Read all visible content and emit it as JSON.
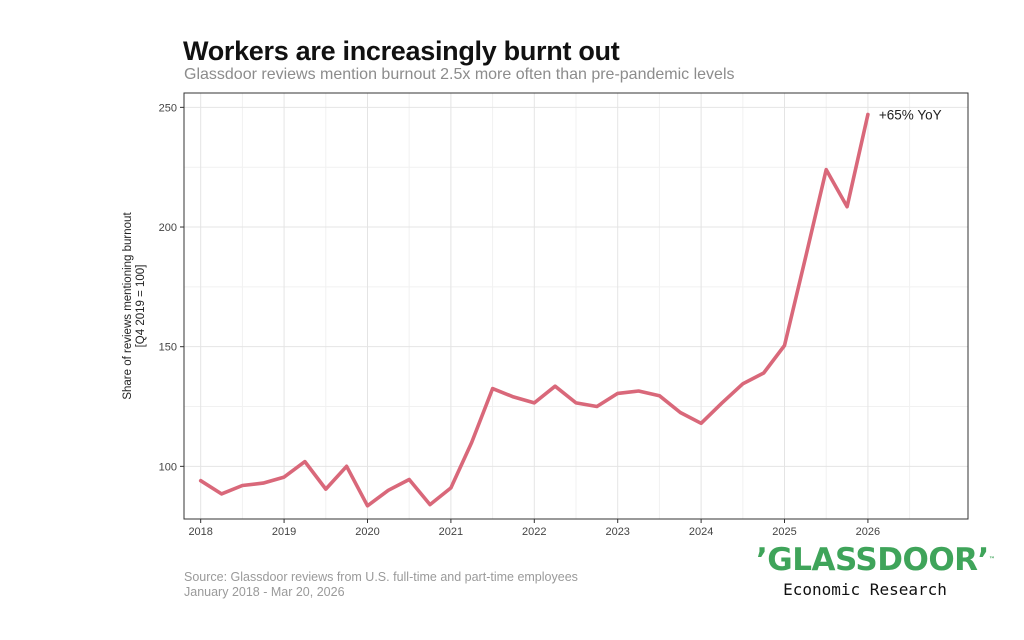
{
  "chart_data": {
    "type": "line",
    "title": "Workers are increasingly burnt out",
    "subtitle": "Glassdoor reviews mention burnout 2.5x more often than pre-pandemic levels",
    "xlabel": "",
    "ylabel": "Share of reviews mentioning burnout\n[Q4 2019 = 100]",
    "xlim": [
      2017.8,
      2027.2
    ],
    "ylim": [
      78,
      256
    ],
    "x_ticks": [
      2018,
      2019,
      2020,
      2021,
      2022,
      2023,
      2024,
      2025,
      2026
    ],
    "y_ticks": [
      100,
      150,
      200,
      250
    ],
    "grid": true,
    "series": [
      {
        "color": "#d9687a",
        "x": [
          2018.0,
          2018.25,
          2018.5,
          2018.75,
          2019.0,
          2019.25,
          2019.5,
          2019.75,
          2020.0,
          2020.25,
          2020.5,
          2020.75,
          2021.0,
          2021.25,
          2021.5,
          2021.75,
          2022.0,
          2022.25,
          2022.5,
          2022.75,
          2023.0,
          2023.25,
          2023.5,
          2023.75,
          2024.0,
          2024.25,
          2024.5,
          2024.75,
          2025.0,
          2025.25,
          2025.5,
          2025.75,
          2026.0
        ],
        "y": [
          94,
          88.5,
          92,
          93,
          95.5,
          102,
          90.5,
          100,
          83.5,
          90,
          94.5,
          84,
          91,
          110,
          132.5,
          129,
          126.5,
          133.5,
          126.5,
          125,
          130.5,
          131.5,
          129.5,
          122.5,
          118,
          126.5,
          134.5,
          139,
          150.5,
          187,
          224,
          208.5,
          247
        ]
      }
    ],
    "annotations": [
      {
        "text": "+65% YoY"
      }
    ]
  },
  "source": {
    "line1": "Source: Glassdoor reviews from U.S. full-time and part-time employees",
    "line2": "January 2018 - Mar 20, 2026"
  },
  "brand": {
    "name": "’GLASSDOOR’",
    "tm": "™",
    "sub": "Economic Research",
    "color": "#3fa45a"
  }
}
